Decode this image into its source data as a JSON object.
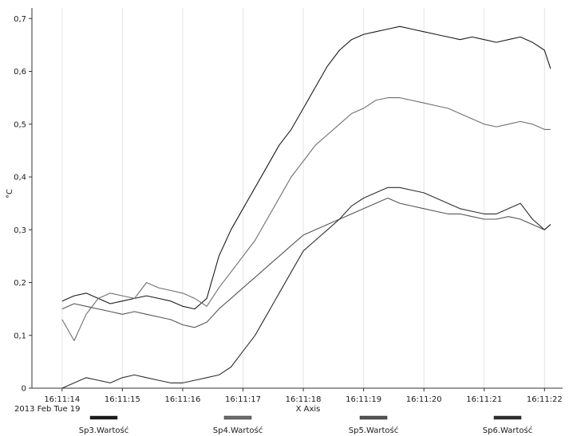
{
  "chart_data": {
    "type": "line",
    "date_label": "2013 Feb Tue 19",
    "xlabel": "X Axis",
    "ylabel": "°C",
    "xlim": [
      13.5,
      22.3
    ],
    "ylim": [
      0,
      0.72
    ],
    "x_ticks": [
      "16:11:14",
      "16:11:15",
      "16:11:16",
      "16:11:17",
      "16:11:18",
      "16:11:19",
      "16:11:20",
      "16:11:21",
      "16:11:22"
    ],
    "y_ticks": [
      "0",
      "0,1",
      "0,2",
      "0,3",
      "0,4",
      "0,5",
      "0,6",
      "0,7"
    ],
    "grid": "vertical",
    "legend_position": "bottom",
    "series": [
      {
        "name": "Sp3.Wartość",
        "color": "#1a1a1a",
        "x": [
          14.0,
          14.2,
          14.4,
          14.6,
          14.8,
          15.0,
          15.2,
          15.4,
          15.6,
          15.8,
          16.0,
          16.2,
          16.4,
          16.6,
          16.8,
          17.0,
          17.2,
          17.4,
          17.6,
          17.8,
          18.0,
          18.2,
          18.4,
          18.6,
          18.8,
          19.0,
          19.2,
          19.4,
          19.6,
          19.8,
          20.0,
          20.2,
          20.4,
          20.6,
          20.8,
          21.0,
          21.2,
          21.4,
          21.6,
          21.8,
          22.0,
          22.1
        ],
        "y": [
          0.165,
          0.175,
          0.18,
          0.17,
          0.16,
          0.165,
          0.17,
          0.175,
          0.17,
          0.165,
          0.155,
          0.15,
          0.17,
          0.25,
          0.3,
          0.34,
          0.38,
          0.42,
          0.46,
          0.49,
          0.53,
          0.57,
          0.61,
          0.64,
          0.66,
          0.67,
          0.675,
          0.68,
          0.685,
          0.68,
          0.675,
          0.67,
          0.665,
          0.66,
          0.665,
          0.66,
          0.655,
          0.66,
          0.665,
          0.655,
          0.64,
          0.605
        ]
      },
      {
        "name": "Sp4.Wartość",
        "color": "#6e6e6e",
        "x": [
          14.0,
          14.2,
          14.4,
          14.6,
          14.8,
          15.0,
          15.2,
          15.4,
          15.6,
          15.8,
          16.0,
          16.2,
          16.4,
          16.6,
          16.8,
          17.0,
          17.2,
          17.4,
          17.6,
          17.8,
          18.0,
          18.2,
          18.4,
          18.6,
          18.8,
          19.0,
          19.2,
          19.4,
          19.6,
          19.8,
          20.0,
          20.2,
          20.4,
          20.6,
          20.8,
          21.0,
          21.2,
          21.4,
          21.6,
          21.8,
          22.0,
          22.1
        ],
        "y": [
          0.13,
          0.09,
          0.14,
          0.17,
          0.18,
          0.175,
          0.17,
          0.2,
          0.19,
          0.185,
          0.18,
          0.17,
          0.155,
          0.19,
          0.22,
          0.25,
          0.28,
          0.32,
          0.36,
          0.4,
          0.43,
          0.46,
          0.48,
          0.5,
          0.52,
          0.53,
          0.545,
          0.55,
          0.55,
          0.545,
          0.54,
          0.535,
          0.53,
          0.52,
          0.51,
          0.5,
          0.495,
          0.5,
          0.505,
          0.5,
          0.49,
          0.49
        ]
      },
      {
        "name": "Sp5.Wartość",
        "color": "#555555",
        "x": [
          14.0,
          14.2,
          14.4,
          14.6,
          14.8,
          15.0,
          15.2,
          15.4,
          15.6,
          15.8,
          16.0,
          16.2,
          16.4,
          16.6,
          16.8,
          17.0,
          17.2,
          17.4,
          17.6,
          17.8,
          18.0,
          18.2,
          18.4,
          18.6,
          18.8,
          19.0,
          19.2,
          19.4,
          19.6,
          19.8,
          20.0,
          20.2,
          20.4,
          20.6,
          20.8,
          21.0,
          21.2,
          21.4,
          21.6,
          21.8,
          22.0,
          22.1
        ],
        "y": [
          0.15,
          0.16,
          0.155,
          0.15,
          0.145,
          0.14,
          0.145,
          0.14,
          0.135,
          0.13,
          0.12,
          0.115,
          0.125,
          0.15,
          0.17,
          0.19,
          0.21,
          0.23,
          0.25,
          0.27,
          0.29,
          0.3,
          0.31,
          0.32,
          0.33,
          0.34,
          0.35,
          0.36,
          0.35,
          0.345,
          0.34,
          0.335,
          0.33,
          0.33,
          0.325,
          0.32,
          0.32,
          0.325,
          0.32,
          0.31,
          0.3,
          0.31
        ]
      },
      {
        "name": "Sp6.Wartość",
        "color": "#2e2e2e",
        "x": [
          14.0,
          14.2,
          14.4,
          14.6,
          14.8,
          15.0,
          15.2,
          15.4,
          15.6,
          15.8,
          16.0,
          16.2,
          16.4,
          16.6,
          16.8,
          17.0,
          17.2,
          17.4,
          17.6,
          17.8,
          18.0,
          18.2,
          18.4,
          18.6,
          18.8,
          19.0,
          19.2,
          19.4,
          19.6,
          19.8,
          20.0,
          20.2,
          20.4,
          20.6,
          20.8,
          21.0,
          21.2,
          21.4,
          21.6,
          21.8,
          22.0,
          22.1
        ],
        "y": [
          0.0,
          0.01,
          0.02,
          0.015,
          0.01,
          0.02,
          0.025,
          0.02,
          0.015,
          0.01,
          0.01,
          0.015,
          0.02,
          0.025,
          0.04,
          0.07,
          0.1,
          0.14,
          0.18,
          0.22,
          0.26,
          0.28,
          0.3,
          0.32,
          0.345,
          0.36,
          0.37,
          0.38,
          0.38,
          0.375,
          0.37,
          0.36,
          0.35,
          0.34,
          0.335,
          0.33,
          0.33,
          0.34,
          0.35,
          0.32,
          0.3,
          0.31
        ]
      }
    ]
  }
}
